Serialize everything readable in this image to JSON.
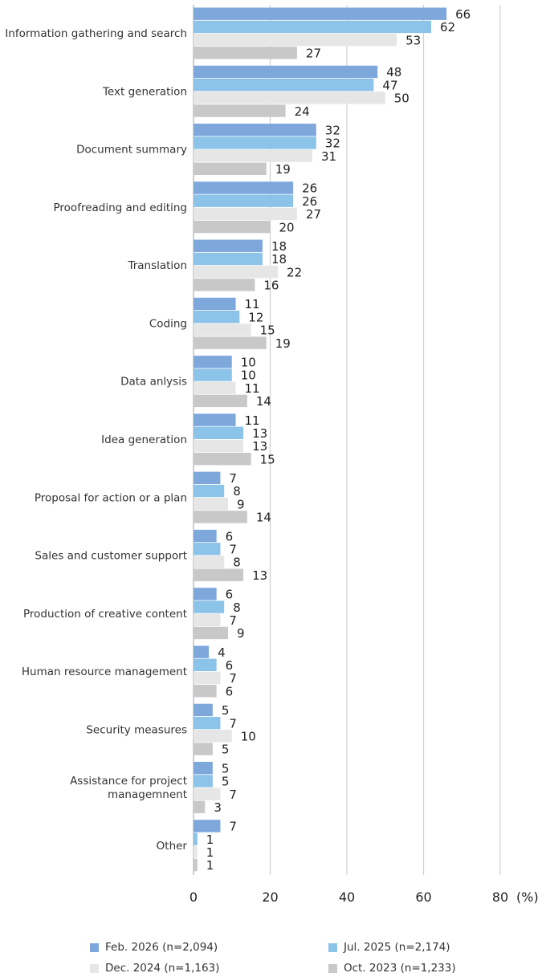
{
  "chart_data": {
    "type": "bar",
    "orientation": "horizontal",
    "categories": [
      "Information gathering and search",
      "Text generation",
      "Document summary",
      "Proofreading and editing",
      "Translation",
      "Coding",
      "Data anlysis",
      "Idea generation",
      "Proposal for action or a plan",
      "Sales and customer support",
      "Production of creative content",
      "Human resource management",
      "Security measures",
      "Assistance for project\nmanagemnent",
      "Other"
    ],
    "series": [
      {
        "name": "Feb. 2026 (n=2,094)",
        "color": "#7EA7DC",
        "values": [
          66,
          48,
          32,
          26,
          18,
          11,
          10,
          11,
          7,
          6,
          6,
          4,
          5,
          5,
          7
        ]
      },
      {
        "name": "Jul. 2025 (n=2,174)",
        "color": "#8CC3E8",
        "values": [
          62,
          47,
          32,
          26,
          18,
          12,
          10,
          13,
          8,
          7,
          8,
          6,
          7,
          5,
          1
        ]
      },
      {
        "name": "Dec. 2024 (n=1,163)",
        "color": "#E6E6E6",
        "values": [
          53,
          50,
          31,
          27,
          22,
          15,
          11,
          13,
          9,
          8,
          7,
          7,
          10,
          7,
          1
        ]
      },
      {
        "name": "Oct. 2023 (n=1,233)",
        "color": "#C8C8C8",
        "values": [
          27,
          24,
          19,
          20,
          16,
          19,
          14,
          15,
          14,
          13,
          9,
          6,
          5,
          3,
          1
        ]
      }
    ],
    "xlim": [
      0,
      80
    ],
    "xticks": [
      "0",
      "20",
      "40",
      "60",
      "80"
    ],
    "x_unit": "(%)",
    "grid": true,
    "legend_position": "bottom"
  }
}
